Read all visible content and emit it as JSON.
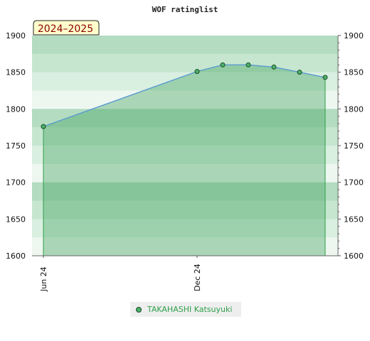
{
  "chart_data": {
    "type": "area",
    "title": "WOF ratinglist",
    "season_label": "2024–2025",
    "ylim": [
      1600,
      1900
    ],
    "y_ticks": [
      1600,
      1650,
      1700,
      1750,
      1800,
      1850,
      1900
    ],
    "x_tick_labels": [
      "Jun 24",
      "Dec 24"
    ],
    "legend_position": "bottom-center",
    "series": [
      {
        "name": "TAKAHASHI Katsuyuki",
        "color": "#4caf6a",
        "points": [
          {
            "x": "2024-06",
            "y": 1776
          },
          {
            "x": "2024-12",
            "y": 1851
          },
          {
            "x": "2025-01",
            "y": 1860
          },
          {
            "x": "2025-02",
            "y": 1860
          },
          {
            "x": "2025-03",
            "y": 1857
          },
          {
            "x": "2025-04",
            "y": 1850
          },
          {
            "x": "2025-05",
            "y": 1843
          }
        ]
      }
    ]
  }
}
